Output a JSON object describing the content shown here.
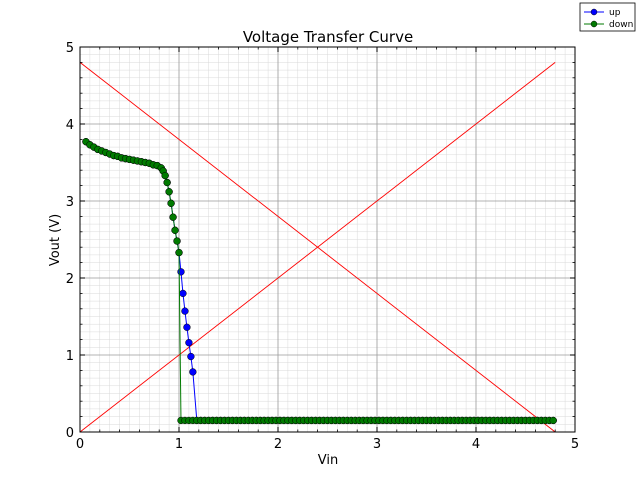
{
  "chart_data": {
    "type": "line",
    "title": "Voltage Transfer Curve",
    "xlabel": "Vin",
    "ylabel": "Vout (V)",
    "xlim": [
      0,
      5
    ],
    "ylim": [
      0,
      5
    ],
    "xticks": [
      "0",
      "1",
      "2",
      "3",
      "4",
      "5"
    ],
    "yticks": [
      "0",
      "1",
      "2",
      "3",
      "4",
      "5"
    ],
    "grid": true,
    "minor_grid": true,
    "legend_placement": "top-right outside",
    "series": [
      {
        "name": "up",
        "color": "#0000ff",
        "marker": "circle",
        "x": [
          0.06,
          0.1,
          0.14,
          0.18,
          0.22,
          0.26,
          0.3,
          0.34,
          0.38,
          0.42,
          0.46,
          0.5,
          0.54,
          0.58,
          0.62,
          0.66,
          0.7,
          0.74,
          0.78,
          0.82,
          0.84,
          0.86,
          0.88,
          0.9,
          0.92,
          0.94,
          0.96,
          0.98,
          1.0,
          1.02,
          1.04,
          1.06,
          1.08,
          1.1,
          1.12,
          1.14,
          1.18,
          1.22,
          1.26,
          1.3,
          1.34,
          1.38,
          1.42,
          1.46,
          1.5,
          1.54,
          1.58,
          1.62,
          1.66,
          1.7,
          1.74,
          1.78,
          1.82,
          1.86,
          1.9,
          1.94,
          1.98,
          2.02,
          2.06,
          2.1,
          2.14,
          2.18,
          2.22,
          2.26,
          2.3,
          2.34,
          2.38,
          2.42,
          2.46,
          2.5,
          2.54,
          2.58,
          2.62,
          2.66,
          2.7,
          2.74,
          2.78,
          2.82,
          2.86,
          2.9,
          2.94,
          2.98,
          3.02,
          3.06,
          3.1,
          3.14,
          3.18,
          3.22,
          3.26,
          3.3,
          3.34,
          3.38,
          3.42,
          3.46,
          3.5,
          3.54,
          3.58,
          3.62,
          3.66,
          3.7,
          3.74,
          3.78,
          3.82,
          3.86,
          3.9,
          3.94,
          3.98,
          4.02,
          4.06,
          4.1,
          4.14,
          4.18,
          4.22,
          4.26,
          4.3,
          4.34,
          4.38,
          4.42,
          4.46,
          4.5,
          4.54,
          4.58,
          4.62,
          4.66,
          4.7,
          4.74,
          4.78
        ],
        "y": [
          3.77,
          3.73,
          3.7,
          3.67,
          3.65,
          3.63,
          3.61,
          3.59,
          3.58,
          3.56,
          3.55,
          3.54,
          3.53,
          3.52,
          3.51,
          3.5,
          3.49,
          3.47,
          3.46,
          3.43,
          3.39,
          3.33,
          3.24,
          3.12,
          2.97,
          2.79,
          2.62,
          2.48,
          2.33,
          2.08,
          1.8,
          1.57,
          1.36,
          1.16,
          0.98,
          0.78,
          0.15,
          0.15,
          0.15,
          0.15,
          0.15,
          0.15,
          0.15,
          0.15,
          0.15,
          0.15,
          0.15,
          0.15,
          0.15,
          0.15,
          0.15,
          0.15,
          0.15,
          0.15,
          0.15,
          0.15,
          0.15,
          0.15,
          0.15,
          0.15,
          0.15,
          0.15,
          0.15,
          0.15,
          0.15,
          0.15,
          0.15,
          0.15,
          0.15,
          0.15,
          0.15,
          0.15,
          0.15,
          0.15,
          0.15,
          0.15,
          0.15,
          0.15,
          0.15,
          0.15,
          0.15,
          0.15,
          0.15,
          0.15,
          0.15,
          0.15,
          0.15,
          0.15,
          0.15,
          0.15,
          0.15,
          0.15,
          0.15,
          0.15,
          0.15,
          0.15,
          0.15,
          0.15,
          0.15,
          0.15,
          0.15,
          0.15,
          0.15,
          0.15,
          0.15,
          0.15,
          0.15,
          0.15,
          0.15,
          0.15,
          0.15,
          0.15,
          0.15,
          0.15,
          0.15,
          0.15,
          0.15,
          0.15,
          0.15,
          0.15,
          0.15,
          0.15,
          0.15,
          0.15,
          0.15,
          0.15,
          0.15
        ]
      },
      {
        "name": "down",
        "color": "#007a00",
        "marker": "circle",
        "x": [
          0.06,
          0.1,
          0.14,
          0.18,
          0.22,
          0.26,
          0.3,
          0.34,
          0.38,
          0.42,
          0.46,
          0.5,
          0.54,
          0.58,
          0.62,
          0.66,
          0.7,
          0.74,
          0.78,
          0.82,
          0.84,
          0.86,
          0.88,
          0.9,
          0.92,
          0.94,
          0.96,
          0.98,
          1.0,
          1.02,
          1.06,
          1.1,
          1.14,
          1.18,
          1.22,
          1.26,
          1.3,
          1.34,
          1.38,
          1.42,
          1.46,
          1.5,
          1.54,
          1.58,
          1.62,
          1.66,
          1.7,
          1.74,
          1.78,
          1.82,
          1.86,
          1.9,
          1.94,
          1.98,
          2.02,
          2.06,
          2.1,
          2.14,
          2.18,
          2.22,
          2.26,
          2.3,
          2.34,
          2.38,
          2.42,
          2.46,
          2.5,
          2.54,
          2.58,
          2.62,
          2.66,
          2.7,
          2.74,
          2.78,
          2.82,
          2.86,
          2.9,
          2.94,
          2.98,
          3.02,
          3.06,
          3.1,
          3.14,
          3.18,
          3.22,
          3.26,
          3.3,
          3.34,
          3.38,
          3.42,
          3.46,
          3.5,
          3.54,
          3.58,
          3.62,
          3.66,
          3.7,
          3.74,
          3.78,
          3.82,
          3.86,
          3.9,
          3.94,
          3.98,
          4.02,
          4.06,
          4.1,
          4.14,
          4.18,
          4.22,
          4.26,
          4.3,
          4.34,
          4.38,
          4.42,
          4.46,
          4.5,
          4.54,
          4.58,
          4.62,
          4.66,
          4.7,
          4.74,
          4.78
        ],
        "y": [
          3.77,
          3.73,
          3.7,
          3.67,
          3.65,
          3.63,
          3.61,
          3.59,
          3.58,
          3.56,
          3.55,
          3.54,
          3.53,
          3.52,
          3.51,
          3.5,
          3.49,
          3.47,
          3.46,
          3.43,
          3.39,
          3.33,
          3.24,
          3.12,
          2.97,
          2.79,
          2.62,
          2.48,
          2.33,
          0.15,
          0.15,
          0.15,
          0.15,
          0.15,
          0.15,
          0.15,
          0.15,
          0.15,
          0.15,
          0.15,
          0.15,
          0.15,
          0.15,
          0.15,
          0.15,
          0.15,
          0.15,
          0.15,
          0.15,
          0.15,
          0.15,
          0.15,
          0.15,
          0.15,
          0.15,
          0.15,
          0.15,
          0.15,
          0.15,
          0.15,
          0.15,
          0.15,
          0.15,
          0.15,
          0.15,
          0.15,
          0.15,
          0.15,
          0.15,
          0.15,
          0.15,
          0.15,
          0.15,
          0.15,
          0.15,
          0.15,
          0.15,
          0.15,
          0.15,
          0.15,
          0.15,
          0.15,
          0.15,
          0.15,
          0.15,
          0.15,
          0.15,
          0.15,
          0.15,
          0.15,
          0.15,
          0.15,
          0.15,
          0.15,
          0.15,
          0.15,
          0.15,
          0.15,
          0.15,
          0.15,
          0.15,
          0.15,
          0.15,
          0.15,
          0.15,
          0.15,
          0.15,
          0.15,
          0.15,
          0.15,
          0.15,
          0.15,
          0.15,
          0.15,
          0.15,
          0.15,
          0.15,
          0.15,
          0.15,
          0.15,
          0.15,
          0.15,
          0.15,
          0.15
        ]
      }
    ],
    "reference_lines": [
      {
        "color": "#ff0000",
        "x": [
          0,
          4.8
        ],
        "y": [
          0,
          4.8
        ]
      },
      {
        "color": "#ff0000",
        "x": [
          0,
          4.8
        ],
        "y": [
          4.8,
          0
        ]
      }
    ]
  }
}
